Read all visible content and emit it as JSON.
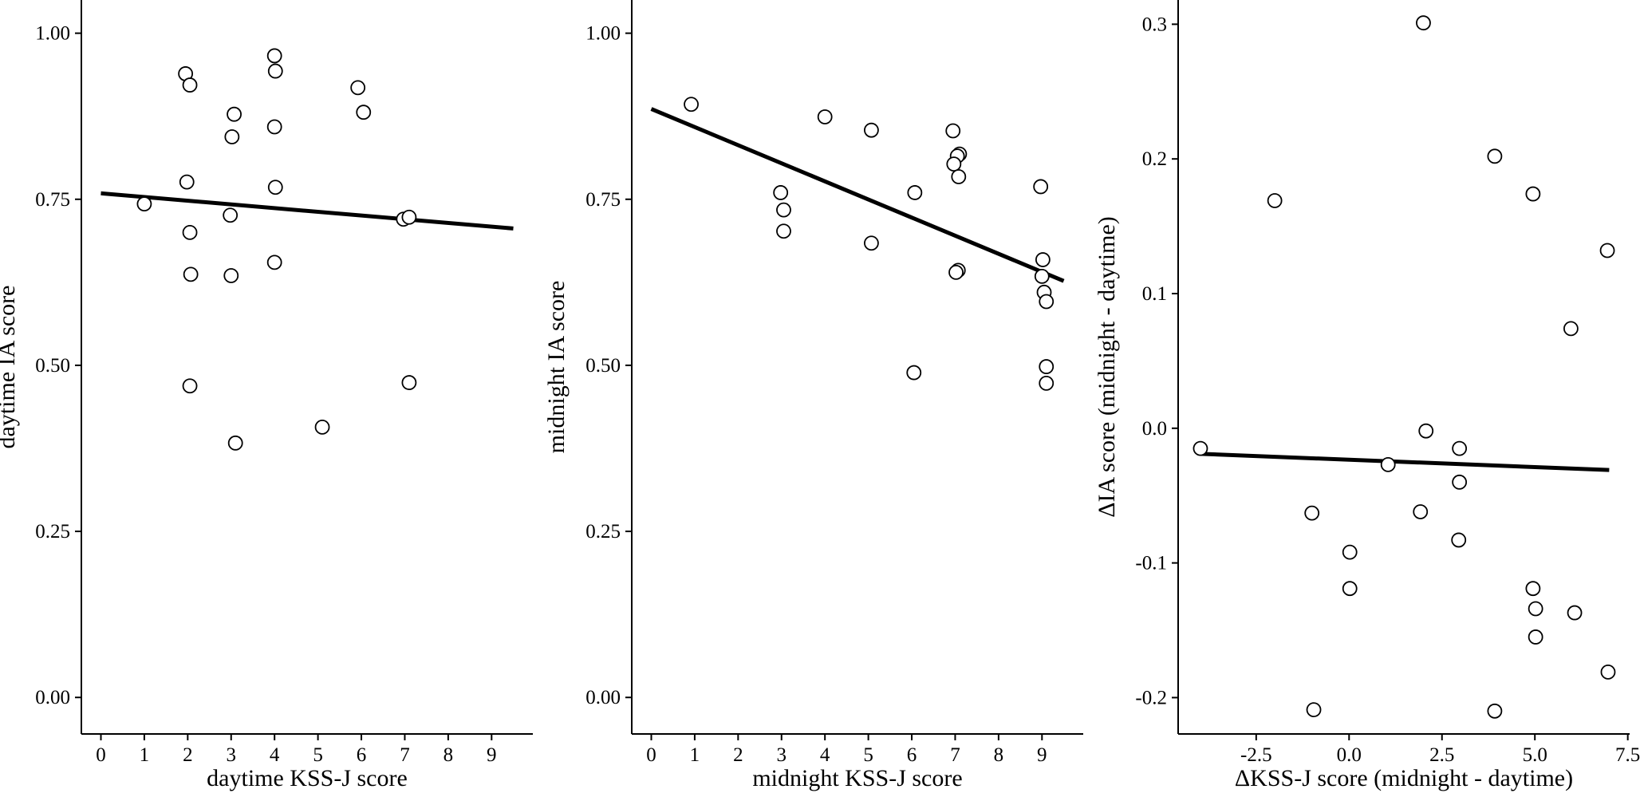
{
  "chart_data": [
    {
      "type": "scatter",
      "xlabel": "daytime KSS-J score",
      "ylabel": "daytime IA score",
      "xlim": [
        -0.45,
        9.95
      ],
      "ylim": [
        -0.055,
        1.05
      ],
      "xticks": [
        0,
        1,
        2,
        3,
        4,
        5,
        6,
        7,
        8,
        9
      ],
      "xtick_labels": [
        "0",
        "1",
        "2",
        "3",
        "4",
        "5",
        "6",
        "7",
        "8",
        "9"
      ],
      "yticks": [
        0,
        0.25,
        0.5,
        0.75,
        1.0
      ],
      "ytick_labels": [
        "0.00",
        "0.25",
        "0.50",
        "0.75",
        "1.00"
      ],
      "points": [
        {
          "x": 1.0,
          "y": 0.743
        },
        {
          "x": 1.95,
          "y": 0.939
        },
        {
          "x": 2.05,
          "y": 0.922
        },
        {
          "x": 1.98,
          "y": 0.776
        },
        {
          "x": 2.05,
          "y": 0.7
        },
        {
          "x": 2.07,
          "y": 0.637
        },
        {
          "x": 2.05,
          "y": 0.469
        },
        {
          "x": 3.07,
          "y": 0.878
        },
        {
          "x": 3.02,
          "y": 0.844
        },
        {
          "x": 2.98,
          "y": 0.726
        },
        {
          "x": 3.0,
          "y": 0.635
        },
        {
          "x": 3.1,
          "y": 0.383
        },
        {
          "x": 4.0,
          "y": 0.966
        },
        {
          "x": 4.02,
          "y": 0.943
        },
        {
          "x": 4.0,
          "y": 0.859
        },
        {
          "x": 4.02,
          "y": 0.768
        },
        {
          "x": 4.0,
          "y": 0.655
        },
        {
          "x": 5.1,
          "y": 0.407
        },
        {
          "x": 5.92,
          "y": 0.918
        },
        {
          "x": 6.05,
          "y": 0.881
        },
        {
          "x": 6.97,
          "y": 0.72
        },
        {
          "x": 7.1,
          "y": 0.723
        },
        {
          "x": 7.1,
          "y": 0.474
        }
      ],
      "fit_line": {
        "x": [
          0,
          9.5
        ],
        "y": [
          0.759,
          0.706
        ]
      }
    },
    {
      "type": "scatter",
      "xlabel": "midnight KSS-J score",
      "ylabel": "midnight IA score",
      "xlim": [
        -0.45,
        9.95
      ],
      "ylim": [
        -0.055,
        1.05
      ],
      "xticks": [
        0,
        1,
        2,
        3,
        4,
        5,
        6,
        7,
        8,
        9
      ],
      "xtick_labels": [
        "0",
        "1",
        "2",
        "3",
        "4",
        "5",
        "6",
        "7",
        "8",
        "9"
      ],
      "yticks": [
        0,
        0.25,
        0.5,
        0.75,
        1.0
      ],
      "ytick_labels": [
        "0.00",
        "0.25",
        "0.50",
        "0.75",
        "1.00"
      ],
      "points": [
        {
          "x": 0.92,
          "y": 0.893
        },
        {
          "x": 2.98,
          "y": 0.76
        },
        {
          "x": 3.05,
          "y": 0.734
        },
        {
          "x": 3.05,
          "y": 0.702
        },
        {
          "x": 4.0,
          "y": 0.874
        },
        {
          "x": 5.07,
          "y": 0.854
        },
        {
          "x": 5.07,
          "y": 0.684
        },
        {
          "x": 6.07,
          "y": 0.76
        },
        {
          "x": 6.05,
          "y": 0.489
        },
        {
          "x": 6.95,
          "y": 0.853
        },
        {
          "x": 7.1,
          "y": 0.818
        },
        {
          "x": 7.05,
          "y": 0.815
        },
        {
          "x": 6.97,
          "y": 0.803
        },
        {
          "x": 7.08,
          "y": 0.784
        },
        {
          "x": 7.07,
          "y": 0.643
        },
        {
          "x": 7.02,
          "y": 0.64
        },
        {
          "x": 8.97,
          "y": 0.769
        },
        {
          "x": 9.02,
          "y": 0.659
        },
        {
          "x": 9.0,
          "y": 0.634
        },
        {
          "x": 9.05,
          "y": 0.61
        },
        {
          "x": 9.1,
          "y": 0.596
        },
        {
          "x": 9.1,
          "y": 0.498
        },
        {
          "x": 9.1,
          "y": 0.473
        }
      ],
      "fit_line": {
        "x": [
          0,
          9.5
        ],
        "y": [
          0.886,
          0.627
        ]
      }
    },
    {
      "type": "scatter",
      "xlabel": "ΔKSS-J score (midnight - daytime)",
      "ylabel": "ΔIA score (midnight - daytime)",
      "xlim": [
        -4.6,
        7.55
      ],
      "ylim": [
        -0.227,
        0.318
      ],
      "xticks": [
        -2.5,
        0,
        2.5,
        5,
        7.5
      ],
      "xtick_labels": [
        "-2.5",
        "0.0",
        "2.5",
        "5.0",
        "7.5"
      ],
      "yticks": [
        -0.2,
        -0.1,
        0,
        0.1,
        0.2,
        0.3
      ],
      "ytick_labels": [
        "-0.2",
        "-0.1",
        "0.0",
        "0.1",
        "0.2",
        "0.3"
      ],
      "points": [
        {
          "x": -4.0,
          "y": -0.015
        },
        {
          "x": -2.0,
          "y": 0.169
        },
        {
          "x": -1.0,
          "y": -0.063
        },
        {
          "x": -0.95,
          "y": -0.209
        },
        {
          "x": 0.02,
          "y": -0.092
        },
        {
          "x": 0.02,
          "y": -0.119
        },
        {
          "x": 1.05,
          "y": -0.027
        },
        {
          "x": 2.0,
          "y": 0.301
        },
        {
          "x": 2.07,
          "y": -0.002
        },
        {
          "x": 1.92,
          "y": -0.062
        },
        {
          "x": 2.97,
          "y": -0.015
        },
        {
          "x": 2.97,
          "y": -0.04
        },
        {
          "x": 2.95,
          "y": -0.083
        },
        {
          "x": 3.92,
          "y": 0.202
        },
        {
          "x": 3.92,
          "y": -0.21
        },
        {
          "x": 4.95,
          "y": 0.174
        },
        {
          "x": 4.95,
          "y": -0.119
        },
        {
          "x": 5.02,
          "y": -0.134
        },
        {
          "x": 5.02,
          "y": -0.155
        },
        {
          "x": 5.97,
          "y": 0.074
        },
        {
          "x": 6.07,
          "y": -0.137
        },
        {
          "x": 6.95,
          "y": 0.132
        },
        {
          "x": 6.97,
          "y": -0.181
        }
      ],
      "fit_line": {
        "x": [
          -4.0,
          7.0
        ],
        "y": [
          -0.019,
          -0.031
        ]
      }
    }
  ]
}
